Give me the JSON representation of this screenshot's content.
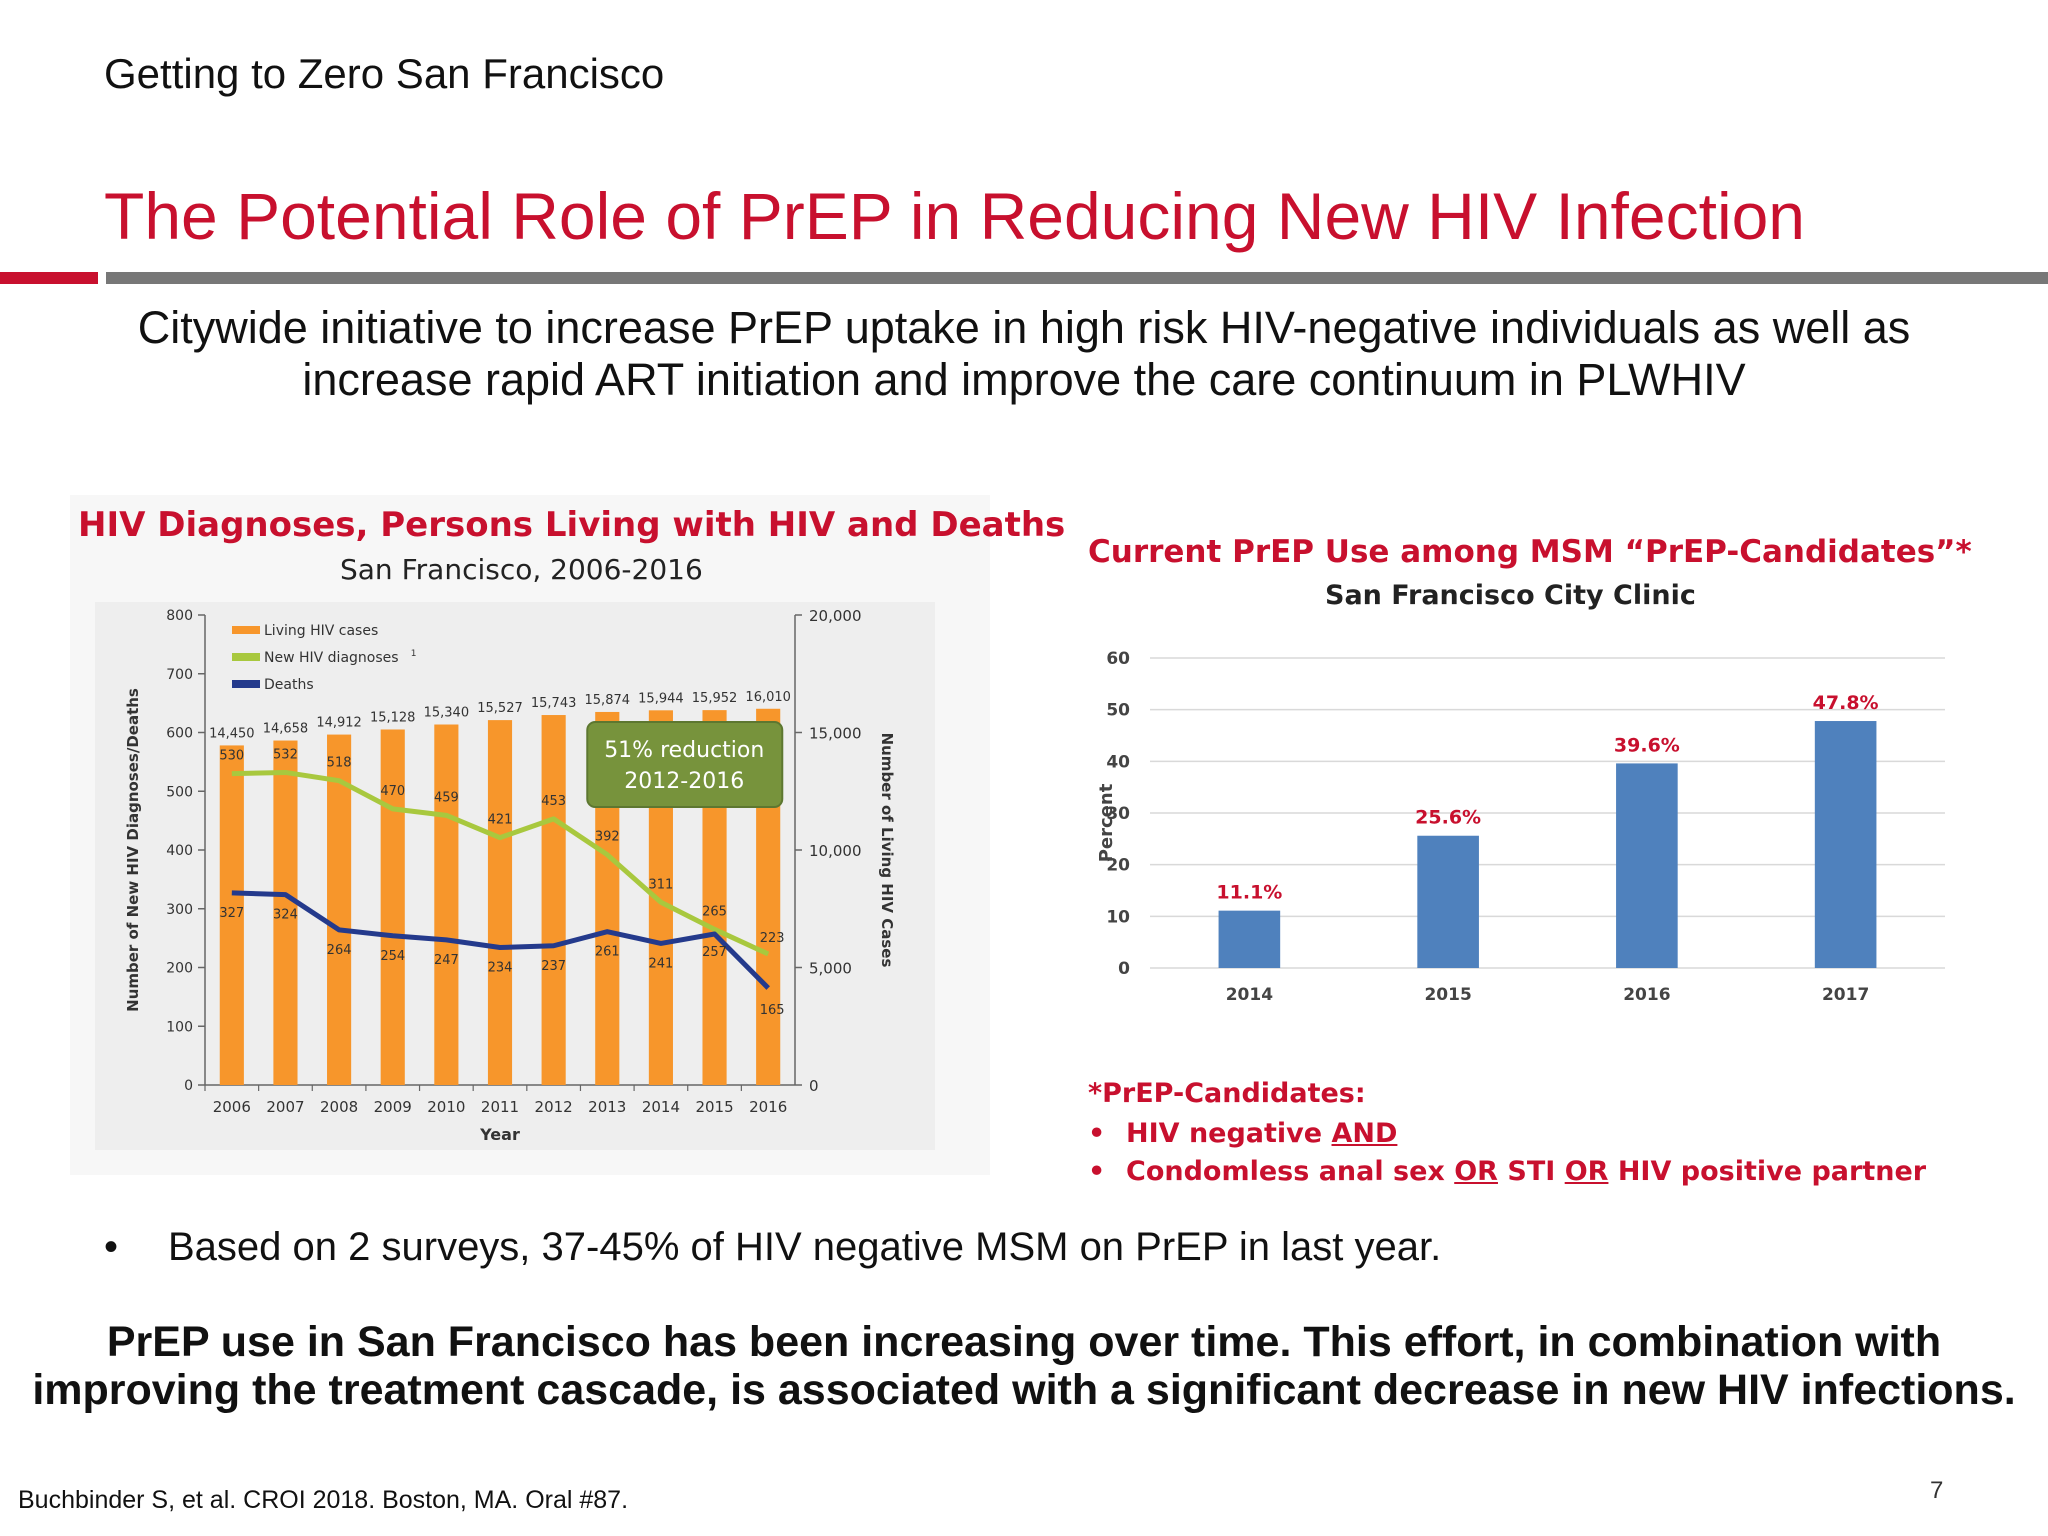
{
  "slide": {
    "org": "Getting to Zero San Francisco",
    "title": "The Potential Role of PrEP in Reducing New HIV Infection",
    "subtitle": "Citywide initiative to increase PrEP uptake in high risk HIV-negative individuals as well as increase rapid ART initiation and improve the care continuum in PLWHIV",
    "bullet": "Based on 2 surveys, 37-45% of HIV negative MSM on PrEP in last year.",
    "conclusion": "PrEP use in San Francisco has been increasing over time. This effort, in combination with improving the treatment cascade, is associated with a significant decrease in new HIV infections.",
    "citation": "Buchbinder S, et al. CROI 2018. Boston, MA. Oral #87.",
    "page_number": "7",
    "footnote": {
      "heading": "*PrEP-Candidates:",
      "item1_a": "HIV negative ",
      "item1_b": "AND",
      "item2_a": "Condomless anal sex ",
      "item2_b": "OR",
      "item2_c": " STI ",
      "item2_d": "OR",
      "item2_e": " HIV positive partner"
    },
    "colors": {
      "accent_red": "#c8102e",
      "rule_grey": "#777777"
    }
  },
  "chart_data": [
    {
      "type": "bar",
      "title": "HIV Diagnoses, Persons Living with HIV and Deaths",
      "subtitle": "San Francisco, 2006-2016",
      "xlabel": "Year",
      "ylabel": "Number of New HIV Diagnoses/Deaths",
      "y2label": "Number of Living HIV Cases",
      "categories": [
        "2006",
        "2007",
        "2008",
        "2009",
        "2010",
        "2011",
        "2012",
        "2013",
        "2014",
        "2015",
        "2016"
      ],
      "ylim": [
        0,
        800
      ],
      "yticks": [
        "0",
        "100",
        "200",
        "300",
        "400",
        "500",
        "600",
        "700",
        "800"
      ],
      "y2lim": [
        0,
        20000
      ],
      "y2ticks": [
        "0",
        "5,000",
        "10,000",
        "15,000",
        "20,000"
      ],
      "grid": false,
      "legend_position": "top-left",
      "series": [
        {
          "name": "Living HIV cases",
          "type": "bar",
          "axis": "right",
          "color": "#f7962b",
          "values": [
            14450,
            14658,
            14912,
            15128,
            15340,
            15527,
            15743,
            15874,
            15944,
            15952,
            16010
          ],
          "labels": [
            "14,450",
            "14,658",
            "14,912",
            "15,128",
            "15,340",
            "15,527",
            "15,743",
            "15,874",
            "15,944",
            "15,952",
            "16,010"
          ]
        },
        {
          "name": "New HIV diagnoses",
          "name_suffix": "1",
          "type": "line",
          "axis": "left",
          "color": "#a8c83e",
          "values": [
            530,
            532,
            518,
            470,
            459,
            421,
            453,
            392,
            311,
            265,
            223
          ],
          "labels": [
            "530",
            "532",
            "518",
            "470",
            "459",
            "421",
            "453",
            "392",
            "311",
            "265",
            "223"
          ]
        },
        {
          "name": "Deaths",
          "type": "line",
          "axis": "left",
          "color": "#243a8c",
          "values": [
            327,
            324,
            264,
            254,
            247,
            234,
            237,
            261,
            241,
            257,
            165
          ],
          "labels": [
            "327",
            "324",
            "264",
            "254",
            "247",
            "234",
            "237",
            "261",
            "241",
            "257",
            "165"
          ]
        }
      ],
      "annotation": {
        "line1": "51% reduction",
        "line2": "2012-2016",
        "color": "#77933c"
      }
    },
    {
      "type": "bar",
      "title": "Current PrEP Use among MSM “PrEP-Candidates”*",
      "subtitle": "San Francisco City Clinic",
      "xlabel": "",
      "ylabel": "Percent",
      "categories": [
        "2014",
        "2015",
        "2016",
        "2017"
      ],
      "values": [
        11.1,
        25.6,
        39.6,
        47.8
      ],
      "labels": [
        "11.1%",
        "25.6%",
        "39.6%",
        "47.8%"
      ],
      "ylim": [
        0,
        60
      ],
      "yticks": [
        "0",
        "10",
        "20",
        "30",
        "40",
        "50",
        "60"
      ],
      "grid": true,
      "color": "#4f81bd",
      "label_color": "#c8102e"
    }
  ]
}
